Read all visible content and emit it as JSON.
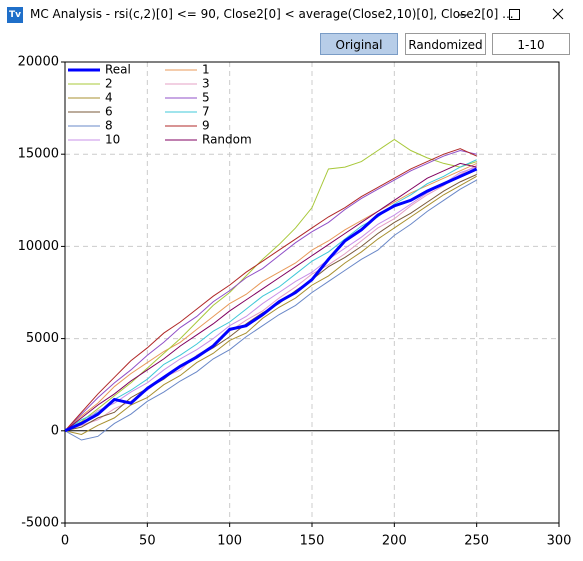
{
  "window": {
    "icon": "Tv",
    "title": "MC Analysis - rsi(c,2)[0] <= 90, Close2[0] < average(Close2,10)[0], Close2[0] ..."
  },
  "buttons": [
    {
      "label": "Original",
      "selected": true
    },
    {
      "label": "Randomized",
      "selected": false
    },
    {
      "label": "1-10",
      "selected": false
    }
  ],
  "chart_data": {
    "type": "line",
    "x": [
      0,
      10,
      20,
      30,
      40,
      50,
      60,
      70,
      80,
      90,
      100,
      110,
      120,
      130,
      140,
      150,
      160,
      170,
      180,
      190,
      200,
      210,
      220,
      230,
      240,
      250
    ],
    "xlim": [
      0,
      300
    ],
    "xticks": [
      0,
      50,
      100,
      150,
      200,
      250,
      300
    ],
    "ylim": [
      -5000,
      20000
    ],
    "yticks": [
      -5000,
      0,
      5000,
      10000,
      15000,
      20000
    ],
    "grid": true,
    "legend": "upper left",
    "series": [
      {
        "name": "Real",
        "color": "#0000ff",
        "values": [
          0,
          400,
          900,
          1700,
          1500,
          2300,
          2900,
          3500,
          4000,
          4600,
          5500,
          5700,
          6300,
          7000,
          7500,
          8200,
          9300,
          10300,
          10900,
          11700,
          12200,
          12500,
          13000,
          13400,
          13800,
          14200
        ]
      },
      {
        "name": "1",
        "color": "#e89a5a",
        "values": [
          0,
          800,
          1500,
          2400,
          3100,
          3700,
          4300,
          4800,
          5500,
          6200,
          6900,
          7400,
          8100,
          8600,
          9100,
          9800,
          10300,
          10900,
          11400,
          11900,
          12400,
          12900,
          13300,
          13700,
          14100,
          14500
        ]
      },
      {
        "name": "2",
        "color": "#a8c83a",
        "values": [
          0,
          500,
          1200,
          1900,
          2600,
          3400,
          4200,
          5000,
          5900,
          6800,
          7500,
          8400,
          9300,
          10100,
          11000,
          12100,
          14200,
          14300,
          14600,
          15200,
          15800,
          15200,
          14800,
          14500,
          14300,
          14600
        ]
      },
      {
        "name": "3",
        "color": "#e4a0c4",
        "values": [
          0,
          300,
          600,
          1200,
          1600,
          2200,
          2900,
          3300,
          4100,
          4600,
          5400,
          6000,
          6500,
          7200,
          7800,
          8500,
          9000,
          9600,
          10300,
          11000,
          11500,
          12200,
          12800,
          13300,
          13900,
          14400
        ]
      },
      {
        "name": "4",
        "color": "#a89030",
        "values": [
          0,
          -200,
          300,
          700,
          1400,
          1800,
          2500,
          3000,
          3700,
          4200,
          4900,
          5300,
          6100,
          6700,
          7200,
          7900,
          8400,
          9100,
          9700,
          10400,
          11000,
          11600,
          12200,
          12800,
          13300,
          13800
        ]
      },
      {
        "name": "5",
        "color": "#9050c8",
        "values": [
          0,
          900,
          1800,
          2600,
          3300,
          4100,
          4800,
          5600,
          6200,
          7000,
          7600,
          8300,
          8800,
          9500,
          10200,
          10800,
          11300,
          12000,
          12600,
          13100,
          13600,
          14100,
          14500,
          14900,
          15200,
          15000
        ]
      },
      {
        "name": "6",
        "color": "#7a5a3a",
        "values": [
          0,
          200,
          700,
          1000,
          1800,
          2300,
          2800,
          3500,
          4000,
          4500,
          5100,
          5800,
          6400,
          6900,
          7600,
          8200,
          8900,
          9400,
          10000,
          10700,
          11300,
          11800,
          12400,
          13000,
          13500,
          13900
        ]
      },
      {
        "name": "7",
        "color": "#40c8d8",
        "values": [
          0,
          600,
          1000,
          1700,
          2200,
          2800,
          3600,
          4100,
          4700,
          5400,
          5900,
          6600,
          7300,
          7800,
          8500,
          9200,
          9700,
          10400,
          11100,
          11600,
          12300,
          12800,
          13400,
          13800,
          14300,
          14700
        ]
      },
      {
        "name": "8",
        "color": "#6a88c8",
        "values": [
          0,
          -500,
          -300,
          400,
          900,
          1600,
          2100,
          2700,
          3200,
          3900,
          4400,
          5100,
          5700,
          6300,
          6800,
          7500,
          8100,
          8700,
          9300,
          9800,
          10600,
          11200,
          11900,
          12500,
          13100,
          13600
        ]
      },
      {
        "name": "9",
        "color": "#b02828",
        "values": [
          0,
          1000,
          2000,
          2900,
          3800,
          4500,
          5300,
          5900,
          6600,
          7300,
          7900,
          8600,
          9200,
          9800,
          10400,
          11000,
          11600,
          12100,
          12700,
          13200,
          13700,
          14200,
          14600,
          15000,
          15300,
          14900
        ]
      },
      {
        "name": "10",
        "color": "#c890e8",
        "values": [
          0,
          400,
          1100,
          1500,
          2100,
          2600,
          3300,
          3900,
          4400,
          5000,
          5700,
          6200,
          6900,
          7500,
          8100,
          8600,
          9300,
          9900,
          10500,
          11200,
          11700,
          12300,
          12900,
          13400,
          14000,
          14300
        ]
      },
      {
        "name": "Random",
        "color": "#800060",
        "values": [
          0,
          700,
          1400,
          2000,
          2700,
          3300,
          3900,
          4600,
          5200,
          5800,
          6500,
          7100,
          7700,
          8300,
          8900,
          9500,
          10100,
          10700,
          11300,
          11900,
          12500,
          13100,
          13700,
          14100,
          14500,
          14300
        ]
      }
    ]
  }
}
